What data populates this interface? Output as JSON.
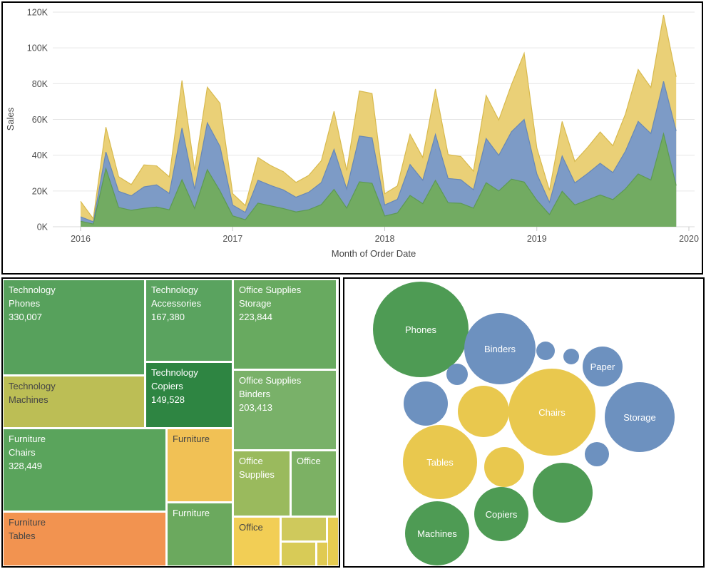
{
  "chart_data": [
    {
      "type": "area",
      "stacked": true,
      "title": "",
      "xlabel": "Month of Order Date",
      "ylabel": "Sales",
      "unit": "K (thousands)",
      "ylim": [
        0,
        120
      ],
      "grid": "horizontal",
      "legend": "none",
      "y_ticks": [
        "0K",
        "20K",
        "40K",
        "60K",
        "80K",
        "100K",
        "120K"
      ],
      "x_ticks": [
        "2016",
        "2017",
        "2018",
        "2019",
        "2020"
      ],
      "x": [
        "2016-01",
        "2016-02",
        "2016-03",
        "2016-04",
        "2016-05",
        "2016-06",
        "2016-07",
        "2016-08",
        "2016-09",
        "2016-10",
        "2016-11",
        "2016-12",
        "2017-01",
        "2017-02",
        "2017-03",
        "2017-04",
        "2017-05",
        "2017-06",
        "2017-07",
        "2017-08",
        "2017-09",
        "2017-10",
        "2017-11",
        "2017-12",
        "2018-01",
        "2018-02",
        "2018-03",
        "2018-04",
        "2018-05",
        "2018-06",
        "2018-07",
        "2018-08",
        "2018-09",
        "2018-10",
        "2018-11",
        "2018-12",
        "2019-01",
        "2019-02",
        "2019-03",
        "2019-04",
        "2019-05",
        "2019-06",
        "2019-07",
        "2019-08",
        "2019-09",
        "2019-10",
        "2019-11",
        "2019-12"
      ],
      "series": [
        {
          "name": "Technology",
          "color": "#72ab62",
          "edge": "#5d9a52",
          "values": [
            3.1,
            1.5,
            32.5,
            10.8,
            9.2,
            10.3,
            11.0,
            9.5,
            26.3,
            10.2,
            31.9,
            20.0,
            6.1,
            3.9,
            13.2,
            11.7,
            10.2,
            8.3,
            9.5,
            12.4,
            20.9,
            10.4,
            25.1,
            24.3,
            6.0,
            7.7,
            17.5,
            12.9,
            25.9,
            13.4,
            13.1,
            10.4,
            24.6,
            20.0,
            26.6,
            25.0,
            14.8,
            6.8,
            19.8,
            12.2,
            14.9,
            17.8,
            15.2,
            21.2,
            29.5,
            26.1,
            52.0,
            23.0
          ]
        },
        {
          "name": "Office Supplies",
          "color": "#7d9bc6",
          "edge": "#6788b7",
          "values": [
            2.5,
            1.3,
            9.3,
            9.0,
            8.1,
            12.0,
            12.4,
            9.1,
            28.9,
            10.8,
            26.2,
            24.9,
            6.0,
            4.1,
            12.8,
            11.4,
            10.4,
            8.2,
            9.8,
            12.3,
            22.3,
            10.7,
            25.6,
            25.4,
            6.2,
            7.6,
            17.3,
            13.1,
            25.7,
            13.6,
            13.2,
            10.3,
            24.7,
            19.9,
            26.5,
            35.0,
            14.7,
            6.8,
            19.7,
            12.3,
            14.8,
            17.7,
            15.1,
            21.1,
            29.4,
            26.0,
            29.3,
            30.5
          ]
        },
        {
          "name": "Furniture",
          "color": "#ead077",
          "edge": "#d8ba4e",
          "values": [
            8.6,
            1.7,
            13.9,
            8.2,
            6.3,
            12.3,
            10.6,
            9.3,
            26.6,
            10.5,
            19.9,
            24.1,
            6.4,
            3.9,
            12.7,
            11.1,
            10.2,
            8.3,
            9.4,
            12.2,
            21.4,
            10.3,
            25.2,
            24.8,
            6.3,
            7.6,
            16.9,
            12.7,
            25.4,
            13.3,
            13.0,
            10.4,
            24.1,
            19.8,
            26.3,
            37.0,
            14.5,
            6.7,
            19.4,
            12.0,
            14.6,
            17.5,
            15.0,
            20.8,
            29.0,
            25.7,
            37.1,
            30.3
          ]
        }
      ]
    },
    {
      "type": "treemap",
      "title": "",
      "cells": [
        {
          "lines": [
            "Technology",
            "Phones",
            "330,007"
          ],
          "color": "#57a15c",
          "text": "#ffffff"
        },
        {
          "lines": [
            "Technology",
            "Accessories",
            "167,380"
          ],
          "color": "#5aa35f",
          "text": "#ffffff"
        },
        {
          "lines": [
            "Office Supplies",
            "Storage",
            "223,844"
          ],
          "color": "#68aa60",
          "text": "#ffffff"
        },
        {
          "lines": [
            "Technology",
            "Machines"
          ],
          "color": "#bcbe55",
          "text": "#454545"
        },
        {
          "lines": [
            "Technology",
            "Copiers",
            "149,528"
          ],
          "color": "#2e8542",
          "text": "#ffffff"
        },
        {
          "lines": [
            "Office Supplies",
            "Binders",
            "203,413"
          ],
          "color": "#79b169",
          "text": "#ffffff"
        },
        {
          "lines": [
            "Furniture",
            "Chairs",
            "328,449"
          ],
          "color": "#5aa45c",
          "text": "#ffffff"
        },
        {
          "lines": [
            "Furniture"
          ],
          "color": "#f1c155",
          "text": "#454545"
        },
        {
          "lines": [
            "Office",
            "Supplies"
          ],
          "color": "#9aba5d",
          "text": "#ffffff"
        },
        {
          "lines": [
            "Office"
          ],
          "color": "#7cb164",
          "text": "#ffffff"
        },
        {
          "lines": [
            "Furniture",
            "Tables"
          ],
          "color": "#f29350",
          "text": "#454545"
        },
        {
          "lines": [
            "Furniture"
          ],
          "color": "#6ba95e",
          "text": "#ffffff"
        },
        {
          "lines": [
            "Office"
          ],
          "color": "#f2ce55",
          "text": "#454545"
        },
        {
          "lines": [],
          "color": "#cfc95c",
          "text": "#454545"
        },
        {
          "lines": [],
          "color": "#d8cb57",
          "text": "#454545"
        },
        {
          "lines": [],
          "color": "#e0ca52",
          "text": "#454545"
        },
        {
          "lines": [],
          "color": "#e6cc50",
          "text": "#454545"
        }
      ]
    },
    {
      "type": "bubble",
      "title": "",
      "legend": "none",
      "items": [
        {
          "label": "Phones",
          "color": "#4e9b54"
        },
        {
          "label": "Binders",
          "color": "#6d91bf"
        },
        {
          "label": "Paper",
          "color": "#6d91bf"
        },
        {
          "label": "Chairs",
          "color": "#e9c84e"
        },
        {
          "label": "Storage",
          "color": "#6d91bf"
        },
        {
          "label": "Tables",
          "color": "#e9c84e"
        },
        {
          "label": "Copiers",
          "color": "#4e9b54"
        },
        {
          "label": "Machines",
          "color": "#4e9b54"
        },
        {
          "label": "",
          "color": "#6d91bf"
        },
        {
          "label": "",
          "color": "#6d91bf"
        },
        {
          "label": "",
          "color": "#6d91bf"
        },
        {
          "label": "",
          "color": "#6d91bf"
        },
        {
          "label": "",
          "color": "#e9c84e"
        },
        {
          "label": "",
          "color": "#e9c84e"
        },
        {
          "label": "",
          "color": "#6d91bf"
        },
        {
          "label": "",
          "color": "#4e9b54"
        }
      ]
    }
  ]
}
